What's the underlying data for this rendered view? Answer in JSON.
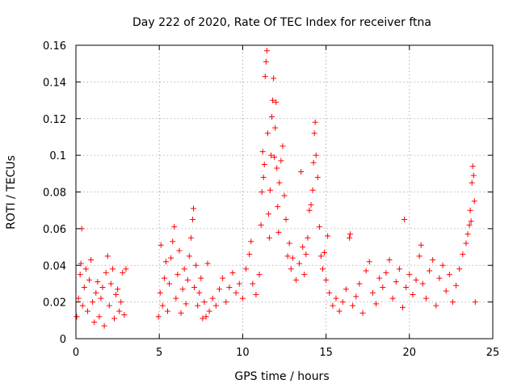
{
  "chart_data": {
    "type": "scatter",
    "title": "Day 222 of 2020, Rate Of TEC Index for receiver ftna",
    "xlabel": "GPS time / hours",
    "ylabel": "ROTI / TECUs",
    "xlim": [
      0,
      25
    ],
    "ylim": [
      0,
      0.16
    ],
    "x_ticks": [
      "0",
      "5",
      "10",
      "15",
      "20",
      "25"
    ],
    "y_ticks": [
      "0",
      "0.02",
      "0.04",
      "0.06",
      "0.08",
      "0.1",
      "0.12",
      "0.14",
      "0.16"
    ],
    "grid": true,
    "marker": "+",
    "color": "#ff0000",
    "series": [
      {
        "points": [
          [
            0.05,
            0.012
          ],
          [
            0.15,
            0.022
          ],
          [
            0.25,
            0.035
          ],
          [
            0.3,
            0.041
          ],
          [
            0.35,
            0.06
          ],
          [
            0.4,
            0.018
          ],
          [
            0.5,
            0.028
          ],
          [
            0.6,
            0.038
          ],
          [
            0.7,
            0.015
          ],
          [
            0.8,
            0.032
          ],
          [
            0.9,
            0.043
          ],
          [
            1.0,
            0.02
          ],
          [
            1.1,
            0.009
          ],
          [
            1.2,
            0.025
          ],
          [
            1.3,
            0.031
          ],
          [
            1.4,
            0.012
          ],
          [
            1.5,
            0.022
          ],
          [
            1.6,
            0.028
          ],
          [
            1.7,
            0.007
          ],
          [
            1.8,
            0.036
          ],
          [
            1.9,
            0.045
          ],
          [
            2.0,
            0.018
          ],
          [
            2.1,
            0.03
          ],
          [
            2.2,
            0.038
          ],
          [
            2.3,
            0.011
          ],
          [
            2.4,
            0.024
          ],
          [
            2.5,
            0.027
          ],
          [
            2.6,
            0.015
          ],
          [
            2.7,
            0.02
          ],
          [
            2.8,
            0.036
          ],
          [
            2.9,
            0.013
          ],
          [
            3.0,
            0.038
          ],
          [
            4.95,
            0.012
          ],
          [
            5.05,
            0.025
          ],
          [
            5.1,
            0.051
          ],
          [
            5.2,
            0.018
          ],
          [
            5.3,
            0.033
          ],
          [
            5.4,
            0.042
          ],
          [
            5.5,
            0.015
          ],
          [
            5.6,
            0.03
          ],
          [
            5.7,
            0.044
          ],
          [
            5.8,
            0.053
          ],
          [
            5.9,
            0.061
          ],
          [
            6.0,
            0.022
          ],
          [
            6.1,
            0.035
          ],
          [
            6.2,
            0.048
          ],
          [
            6.3,
            0.014
          ],
          [
            6.4,
            0.027
          ],
          [
            6.5,
            0.038
          ],
          [
            6.6,
            0.019
          ],
          [
            6.7,
            0.032
          ],
          [
            6.8,
            0.045
          ],
          [
            6.9,
            0.055
          ],
          [
            7.0,
            0.065
          ],
          [
            7.05,
            0.071
          ],
          [
            7.1,
            0.028
          ],
          [
            7.2,
            0.04
          ],
          [
            7.3,
            0.018
          ],
          [
            7.4,
            0.025
          ],
          [
            7.5,
            0.033
          ],
          [
            7.6,
            0.011
          ],
          [
            7.7,
            0.02
          ],
          [
            7.8,
            0.012
          ],
          [
            7.9,
            0.041
          ],
          [
            8.0,
            0.015
          ],
          [
            8.2,
            0.022
          ],
          [
            8.4,
            0.018
          ],
          [
            8.6,
            0.027
          ],
          [
            8.8,
            0.033
          ],
          [
            9.0,
            0.02
          ],
          [
            9.2,
            0.028
          ],
          [
            9.4,
            0.036
          ],
          [
            9.6,
            0.025
          ],
          [
            9.8,
            0.03
          ],
          [
            10.0,
            0.022
          ],
          [
            10.2,
            0.038
          ],
          [
            10.4,
            0.046
          ],
          [
            10.5,
            0.053
          ],
          [
            10.6,
            0.03
          ],
          [
            10.8,
            0.024
          ],
          [
            11.0,
            0.035
          ],
          [
            11.1,
            0.062
          ],
          [
            11.15,
            0.08
          ],
          [
            11.2,
            0.102
          ],
          [
            11.25,
            0.088
          ],
          [
            11.3,
            0.095
          ],
          [
            11.35,
            0.143
          ],
          [
            11.4,
            0.151
          ],
          [
            11.45,
            0.157
          ],
          [
            11.5,
            0.112
          ],
          [
            11.55,
            0.068
          ],
          [
            11.6,
            0.055
          ],
          [
            11.65,
            0.081
          ],
          [
            11.7,
            0.1
          ],
          [
            11.75,
            0.121
          ],
          [
            11.8,
            0.13
          ],
          [
            11.85,
            0.142
          ],
          [
            11.9,
            0.099
          ],
          [
            11.95,
            0.115
          ],
          [
            12.0,
            0.129
          ],
          [
            12.05,
            0.093
          ],
          [
            12.1,
            0.072
          ],
          [
            12.15,
            0.058
          ],
          [
            12.2,
            0.085
          ],
          [
            12.3,
            0.097
          ],
          [
            12.4,
            0.105
          ],
          [
            12.5,
            0.078
          ],
          [
            12.6,
            0.065
          ],
          [
            12.7,
            0.045
          ],
          [
            12.8,
            0.052
          ],
          [
            12.9,
            0.038
          ],
          [
            13.0,
            0.044
          ],
          [
            13.2,
            0.032
          ],
          [
            13.4,
            0.041
          ],
          [
            13.5,
            0.091
          ],
          [
            13.6,
            0.05
          ],
          [
            13.7,
            0.035
          ],
          [
            13.8,
            0.046
          ],
          [
            13.9,
            0.055
          ],
          [
            14.0,
            0.07
          ],
          [
            14.1,
            0.073
          ],
          [
            14.2,
            0.081
          ],
          [
            14.25,
            0.096
          ],
          [
            14.3,
            0.112
          ],
          [
            14.35,
            0.118
          ],
          [
            14.4,
            0.1
          ],
          [
            14.5,
            0.088
          ],
          [
            14.6,
            0.061
          ],
          [
            14.7,
            0.045
          ],
          [
            14.8,
            0.038
          ],
          [
            14.9,
            0.047
          ],
          [
            15.0,
            0.032
          ],
          [
            15.1,
            0.056
          ],
          [
            15.2,
            0.025
          ],
          [
            15.4,
            0.018
          ],
          [
            15.6,
            0.022
          ],
          [
            15.8,
            0.015
          ],
          [
            16.0,
            0.02
          ],
          [
            16.2,
            0.027
          ],
          [
            16.4,
            0.055
          ],
          [
            16.45,
            0.057
          ],
          [
            16.6,
            0.018
          ],
          [
            16.8,
            0.023
          ],
          [
            17.0,
            0.03
          ],
          [
            17.2,
            0.014
          ],
          [
            17.4,
            0.037
          ],
          [
            17.6,
            0.042
          ],
          [
            17.8,
            0.025
          ],
          [
            18.0,
            0.019
          ],
          [
            18.2,
            0.033
          ],
          [
            18.4,
            0.028
          ],
          [
            18.6,
            0.036
          ],
          [
            18.8,
            0.043
          ],
          [
            19.0,
            0.022
          ],
          [
            19.2,
            0.031
          ],
          [
            19.4,
            0.038
          ],
          [
            19.6,
            0.017
          ],
          [
            19.7,
            0.065
          ],
          [
            19.8,
            0.028
          ],
          [
            20.0,
            0.035
          ],
          [
            20.2,
            0.024
          ],
          [
            20.4,
            0.032
          ],
          [
            20.6,
            0.045
          ],
          [
            20.7,
            0.051
          ],
          [
            20.8,
            0.03
          ],
          [
            21.0,
            0.022
          ],
          [
            21.2,
            0.037
          ],
          [
            21.4,
            0.043
          ],
          [
            21.6,
            0.018
          ],
          [
            21.8,
            0.033
          ],
          [
            22.0,
            0.04
          ],
          [
            22.2,
            0.026
          ],
          [
            22.4,
            0.035
          ],
          [
            22.6,
            0.02
          ],
          [
            22.8,
            0.029
          ],
          [
            23.0,
            0.038
          ],
          [
            23.2,
            0.046
          ],
          [
            23.4,
            0.052
          ],
          [
            23.5,
            0.057
          ],
          [
            23.6,
            0.062
          ],
          [
            23.65,
            0.07
          ],
          [
            23.7,
            0.064
          ],
          [
            23.75,
            0.085
          ],
          [
            23.8,
            0.094
          ],
          [
            23.85,
            0.089
          ],
          [
            23.9,
            0.075
          ],
          [
            23.95,
            0.02
          ]
        ]
      }
    ]
  }
}
